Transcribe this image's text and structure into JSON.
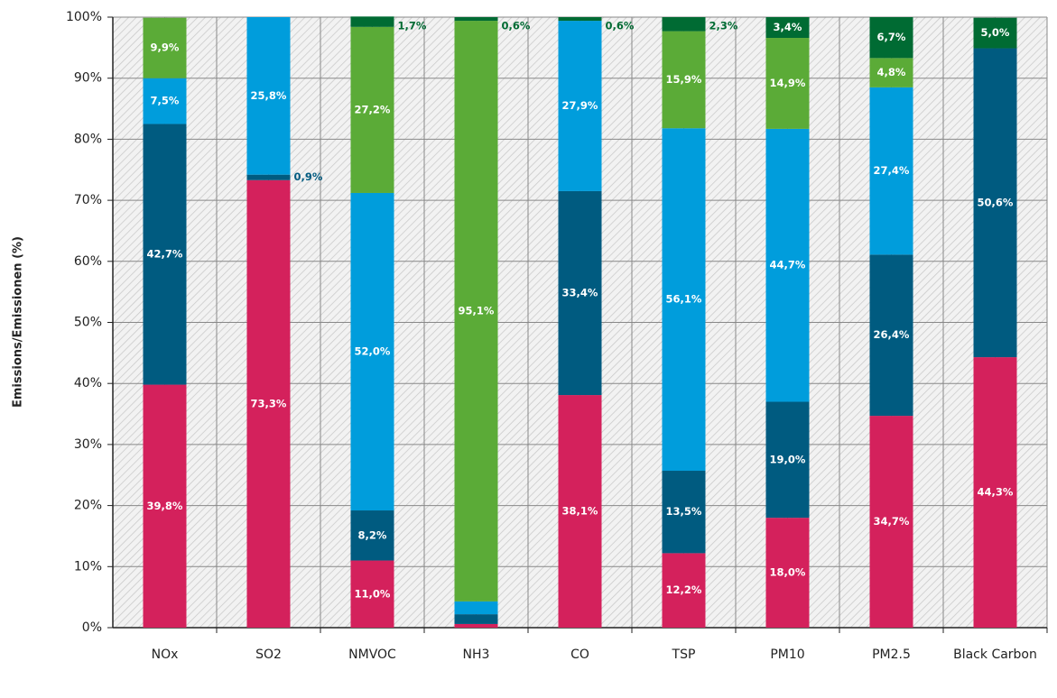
{
  "chart_data": {
    "type": "stacked-bar",
    "y_label": "Emissions/Emissionen (%)",
    "categories": [
      "NOx",
      "SO2",
      "NMVOC",
      "NH3",
      "CO",
      "TSP",
      "PM10",
      "PM2.5",
      "Black Carbon"
    ],
    "series": [
      {
        "color": "#d4215c",
        "values": [
          39.8,
          73.3,
          11.0,
          0.6,
          38.1,
          12.2,
          18.0,
          34.7,
          44.3
        ],
        "value_labels": [
          "39,8%",
          "73,3%",
          "11,0%",
          null,
          "38,1%",
          "12,2%",
          "18,0%",
          "34,7%",
          "44,3%"
        ]
      },
      {
        "color": "#005b80",
        "values": [
          42.7,
          0.9,
          8.2,
          1.6,
          33.4,
          13.5,
          19.0,
          26.4,
          50.6
        ],
        "value_labels": [
          "42,7%",
          "0,9%",
          "8,2%",
          null,
          "33,4%",
          "13,5%",
          "19,0%",
          "26,4%",
          "50,6%"
        ]
      },
      {
        "color": "#009ddc",
        "values": [
          7.5,
          25.8,
          52.0,
          2.1,
          27.9,
          56.1,
          44.7,
          27.4,
          null
        ],
        "value_labels": [
          "7,5%",
          "25,8%",
          "52,0%",
          null,
          "27,9%",
          "56,1%",
          "44,7%",
          "27,4%",
          null
        ]
      },
      {
        "color": "#5bab37",
        "values": [
          9.9,
          null,
          27.2,
          95.1,
          null,
          15.9,
          14.9,
          4.8,
          null
        ],
        "value_labels": [
          "9,9%",
          null,
          "27,2%",
          "95,1%",
          null,
          "15,9%",
          "14,9%",
          "4,8%",
          null
        ]
      },
      {
        "color": "#006b33",
        "values": [
          null,
          null,
          1.7,
          0.6,
          0.6,
          2.3,
          3.4,
          6.7,
          5.0
        ],
        "value_labels": [
          null,
          null,
          "1,7%",
          "0,6%",
          "0,6%",
          "2,3%",
          "3,4%",
          "6,7%",
          "5,0%"
        ]
      }
    ],
    "ylim": [
      0,
      100
    ],
    "yticks": [
      {
        "value": 0,
        "label": "0%"
      },
      {
        "value": 10,
        "label": "10%"
      },
      {
        "value": 20,
        "label": "20%"
      },
      {
        "value": 30,
        "label": "30%"
      },
      {
        "value": 40,
        "label": "40%"
      },
      {
        "value": 50,
        "label": "50%"
      },
      {
        "value": 60,
        "label": "60%"
      },
      {
        "value": 70,
        "label": "70%"
      },
      {
        "value": 80,
        "label": "80%"
      },
      {
        "value": 90,
        "label": "90%"
      },
      {
        "value": 100,
        "label": "100%"
      }
    ],
    "grid": true
  }
}
